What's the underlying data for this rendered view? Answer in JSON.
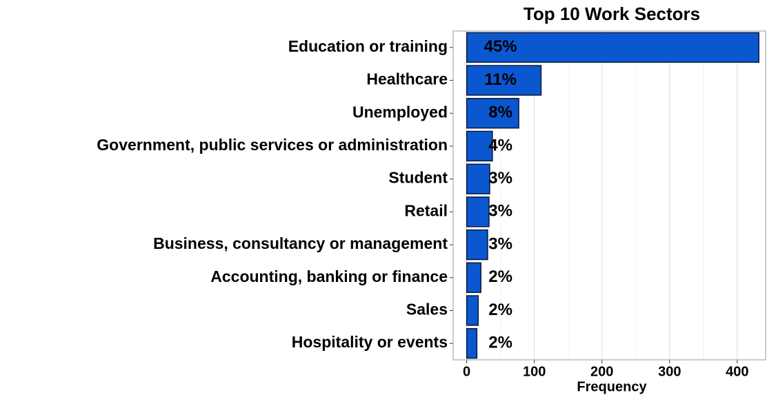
{
  "chart_data": {
    "type": "barh",
    "title": "Top 10 Work Sectors",
    "xlabel": "Frequency",
    "categories": [
      "Education or training",
      "Healthcare",
      "Unemployed",
      "Government, public services or administration",
      "Student",
      "Retail",
      "Business, consultancy or management",
      "Accounting, banking or finance",
      "Sales",
      "Hospitality or events"
    ],
    "values": [
      432,
      110,
      77,
      38,
      34,
      33,
      31,
      21,
      17,
      15
    ],
    "percent_labels": [
      "45%",
      "11%",
      "8%",
      "4%",
      "3%",
      "3%",
      "3%",
      "2%",
      "2%",
      "2%"
    ],
    "color": "#0b57d0",
    "xlim": [
      -20,
      442
    ],
    "xticks": [
      0,
      100,
      200,
      300,
      400
    ],
    "xminorticks": [
      50,
      150,
      250,
      350
    ],
    "grid": true
  }
}
